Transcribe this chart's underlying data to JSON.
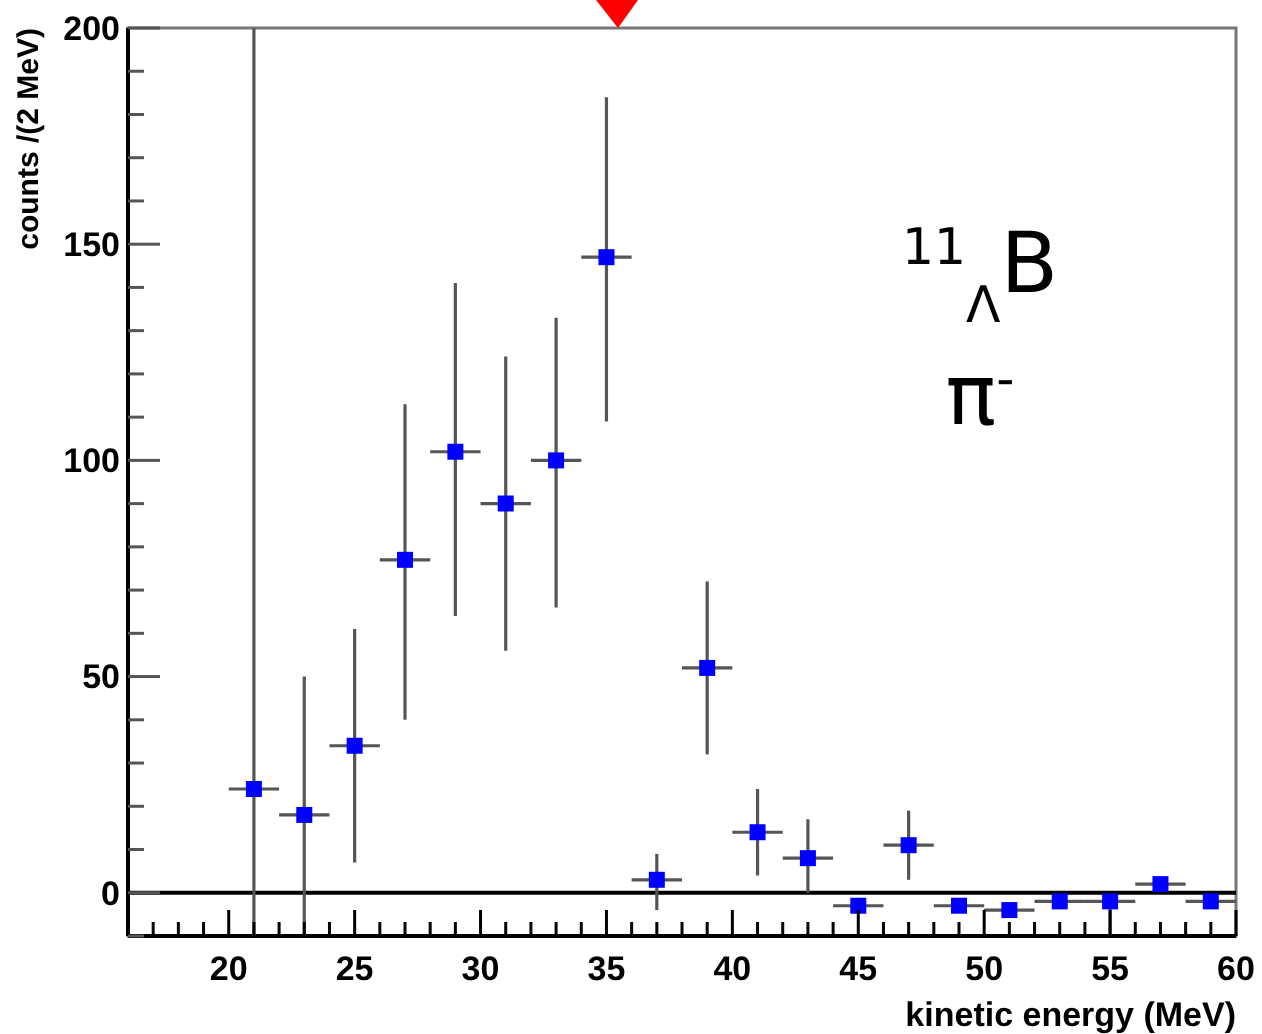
{
  "chart_data": {
    "type": "scatter",
    "xlabel": "kinetic energy (MeV)",
    "ylabel": "counts /(2 MeV)",
    "annotations": [
      "$^{11}$$_{Λ}$B",
      "π$^{-}$"
    ],
    "x": [
      21,
      23,
      25,
      27,
      29,
      31,
      33,
      35,
      37,
      39,
      41,
      43,
      45,
      47,
      49,
      51,
      53,
      55,
      57,
      59
    ],
    "series": [
      {
        "color": "#0000ff",
        "values": [
          24,
          18,
          34,
          77,
          102,
          90,
          100,
          147,
          3,
          52,
          14,
          8,
          -3,
          11,
          -3,
          -4,
          -2,
          -2,
          2,
          -2
        ],
        "errors": [
          [
            -10,
            200
          ],
          [
            -10,
            50
          ],
          [
            7,
            61
          ],
          [
            40,
            113
          ],
          [
            64,
            141
          ],
          [
            56,
            124
          ],
          [
            66,
            133
          ],
          [
            109,
            184
          ],
          [
            -4,
            9
          ],
          [
            32,
            72
          ],
          [
            4,
            24
          ],
          [
            0,
            17
          ],
          null,
          [
            3,
            19
          ],
          null,
          null,
          null,
          [
            -10,
            -2
          ],
          null,
          null
        ],
        "xerrors": [
          1,
          1,
          1,
          1,
          1,
          1,
          1,
          1,
          1,
          1,
          1,
          1,
          1,
          1,
          1,
          1,
          1,
          1,
          1,
          1
        ]
      }
    ],
    "marker": "square",
    "grid": false,
    "ref_lines": [
      {
        "axis": "y",
        "value": 0,
        "color": "#000000"
      }
    ],
    "xlim": [
      16,
      60
    ],
    "ylim": [
      -10,
      200
    ],
    "xticks": [
      {
        "value": 17,
        "label": null
      },
      {
        "value": 18,
        "label": null
      },
      {
        "value": 19,
        "label": null
      },
      20,
      {
        "value": 21,
        "label": null
      },
      {
        "value": 22,
        "label": null
      },
      {
        "value": 23,
        "label": null
      },
      {
        "value": 24,
        "label": null
      },
      25,
      {
        "value": 26,
        "label": null
      },
      {
        "value": 27,
        "label": null
      },
      {
        "value": 28,
        "label": null
      },
      {
        "value": 29,
        "label": null
      },
      30,
      {
        "value": 31,
        "label": null
      },
      {
        "value": 32,
        "label": null
      },
      {
        "value": 33,
        "label": null
      },
      {
        "value": 34,
        "label": null
      },
      35,
      {
        "value": 36,
        "label": null
      },
      {
        "value": 37,
        "label": null
      },
      {
        "value": 38,
        "label": null
      },
      {
        "value": 39,
        "label": null
      },
      40,
      {
        "value": 41,
        "label": null
      },
      {
        "value": 42,
        "label": null
      },
      {
        "value": 43,
        "label": null
      },
      {
        "value": 44,
        "label": null
      },
      45,
      {
        "value": 46,
        "label": null
      },
      {
        "value": 47,
        "label": null
      },
      {
        "value": 48,
        "label": null
      },
      {
        "value": 49,
        "label": null
      },
      50,
      {
        "value": 51,
        "label": null
      },
      {
        "value": 52,
        "label": null
      },
      {
        "value": 53,
        "label": null
      },
      {
        "value": 54,
        "label": null
      },
      55,
      {
        "value": 56,
        "label": null
      },
      {
        "value": 57,
        "label": null
      },
      {
        "value": 58,
        "label": null
      },
      {
        "value": 59,
        "label": null
      },
      60
    ],
    "yticks": [
      {
        "value": -10,
        "label": null
      },
      0,
      {
        "value": 10,
        "label": null
      },
      {
        "value": 20,
        "label": null
      },
      {
        "value": 30,
        "label": null
      },
      {
        "value": 40,
        "label": null
      },
      50,
      {
        "value": 60,
        "label": null
      },
      {
        "value": 70,
        "label": null
      },
      {
        "value": 80,
        "label": null
      },
      {
        "value": 90,
        "label": null
      },
      100,
      {
        "value": 110,
        "label": null
      },
      {
        "value": 120,
        "label": null
      },
      {
        "value": 130,
        "label": null
      },
      {
        "value": 140,
        "label": null
      },
      150,
      {
        "value": 160,
        "label": null
      },
      {
        "value": 170,
        "label": null
      },
      {
        "value": 180,
        "label": null
      },
      {
        "value": 190,
        "label": null
      },
      200
    ]
  }
}
